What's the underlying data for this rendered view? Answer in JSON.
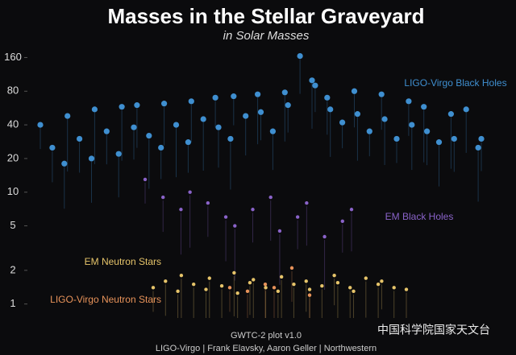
{
  "chart_data": {
    "type": "scatter",
    "title": "Masses in the Stellar Graveyard",
    "subtitle": "in Solar Masses",
    "log_y": true,
    "ylim": [
      0.75,
      200
    ],
    "yticks": [
      1,
      2,
      5,
      10,
      20,
      40,
      80,
      160
    ],
    "series": [
      {
        "name": "LIGO-Virgo Black Holes",
        "color": "#3f8fd0",
        "values": [
          40,
          25,
          18,
          48,
          30,
          20,
          55,
          35,
          22,
          58,
          38,
          60,
          32,
          25,
          62,
          40,
          28,
          65,
          45,
          70,
          38,
          30,
          72,
          48,
          75,
          52,
          35,
          78,
          60,
          165,
          100,
          90,
          70,
          55,
          42,
          80,
          50,
          35,
          75,
          45,
          30,
          65,
          40,
          58,
          35,
          28,
          50,
          30,
          55,
          25,
          30
        ]
      },
      {
        "name": "EM Black Holes",
        "color": "#8a63c9",
        "values": [
          13,
          9,
          7,
          10,
          8,
          6,
          5,
          7,
          9,
          4.5,
          6,
          8,
          4,
          5.5,
          7
        ]
      },
      {
        "name": "EM Neutron Stars",
        "color": "#e6c46a",
        "values": [
          1.4,
          1.6,
          1.3,
          1.8,
          1.5,
          1.35,
          1.7,
          1.45,
          1.9,
          1.25,
          1.55,
          1.65,
          1.4,
          1.3,
          1.75,
          1.5,
          1.6,
          1.35,
          1.45,
          1.8,
          1.55,
          1.4,
          1.3,
          1.7,
          1.5,
          1.6,
          1.4,
          1.35
        ]
      },
      {
        "name": "LIGO-Virgo Neutron Stars",
        "color": "#e8935a",
        "values": [
          1.4,
          1.3,
          1.5,
          1.4,
          2.1,
          1.2
        ]
      }
    ],
    "footer": [
      "GWTC-2 plot v1.0",
      "LIGO-Virgo | Frank Elavsky, Aaron Geller | Northwestern"
    ],
    "watermark": "中国科学院国家天文台"
  }
}
